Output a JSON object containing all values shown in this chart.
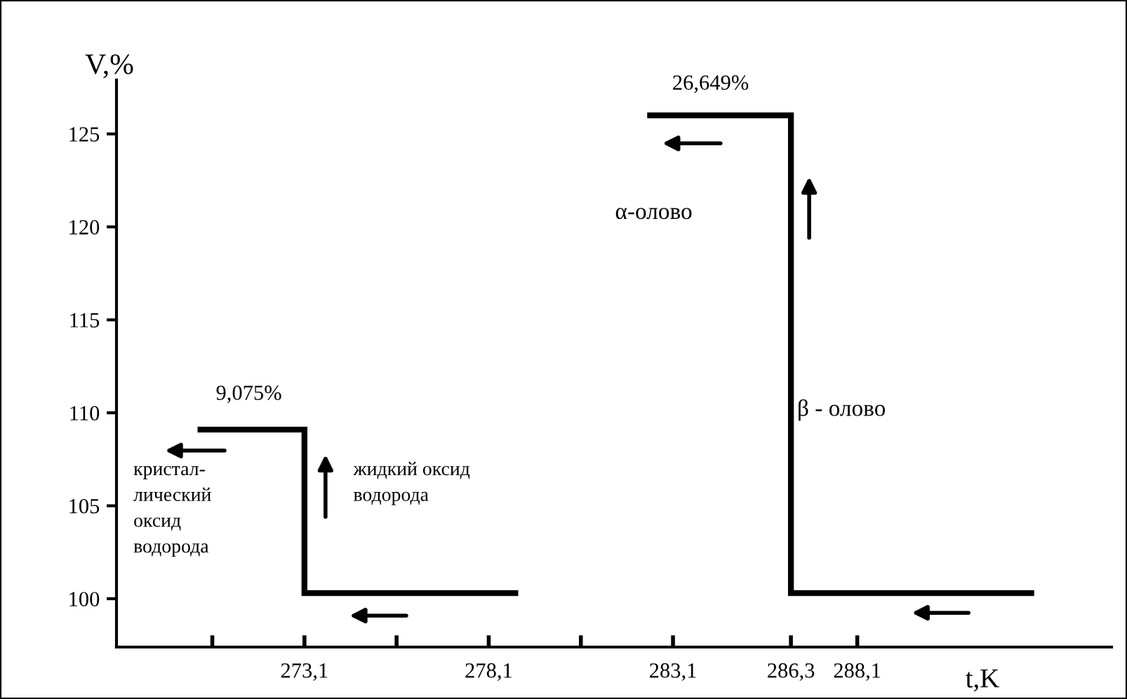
{
  "chart_data": {
    "type": "step",
    "xlabel": "t,K",
    "ylabel": "V,%",
    "series": [
      {
        "color": "#000000",
        "x": [
          270.2,
          273.1,
          278.9
        ],
        "values": [
          109.1,
          100.3,
          100.3
        ]
      },
      {
        "color": "#000000",
        "x": [
          282.4,
          286.3,
          292.9
        ],
        "values": [
          126.0,
          100.3,
          100.3
        ]
      }
    ],
    "xlim": [
      268.0,
      295.0
    ],
    "xticks": [
      {
        "value": 270.6,
        "label": null
      },
      {
        "value": 273.1,
        "label": "273,1"
      },
      {
        "value": 275.6,
        "label": null
      },
      {
        "value": 278.1,
        "label": "278,1"
      },
      {
        "value": 280.6,
        "label": null
      },
      {
        "value": 283.1,
        "label": "283,1"
      },
      {
        "value": 286.3,
        "label": "286,3"
      },
      {
        "value": 288.1,
        "label": "288,1"
      }
    ],
    "ylim": [
      97.4,
      127.9
    ],
    "yticks": [
      100,
      105,
      110,
      115,
      120,
      125
    ],
    "grid": false,
    "legend": false,
    "line_style": "solid",
    "marker": "none",
    "annotations": [
      "9,075%",
      "26,649%",
      "кристал-\nлический\nоксид\nводорода",
      "жидкий оксид\nводорода",
      "α-олово",
      "β - олово"
    ]
  }
}
